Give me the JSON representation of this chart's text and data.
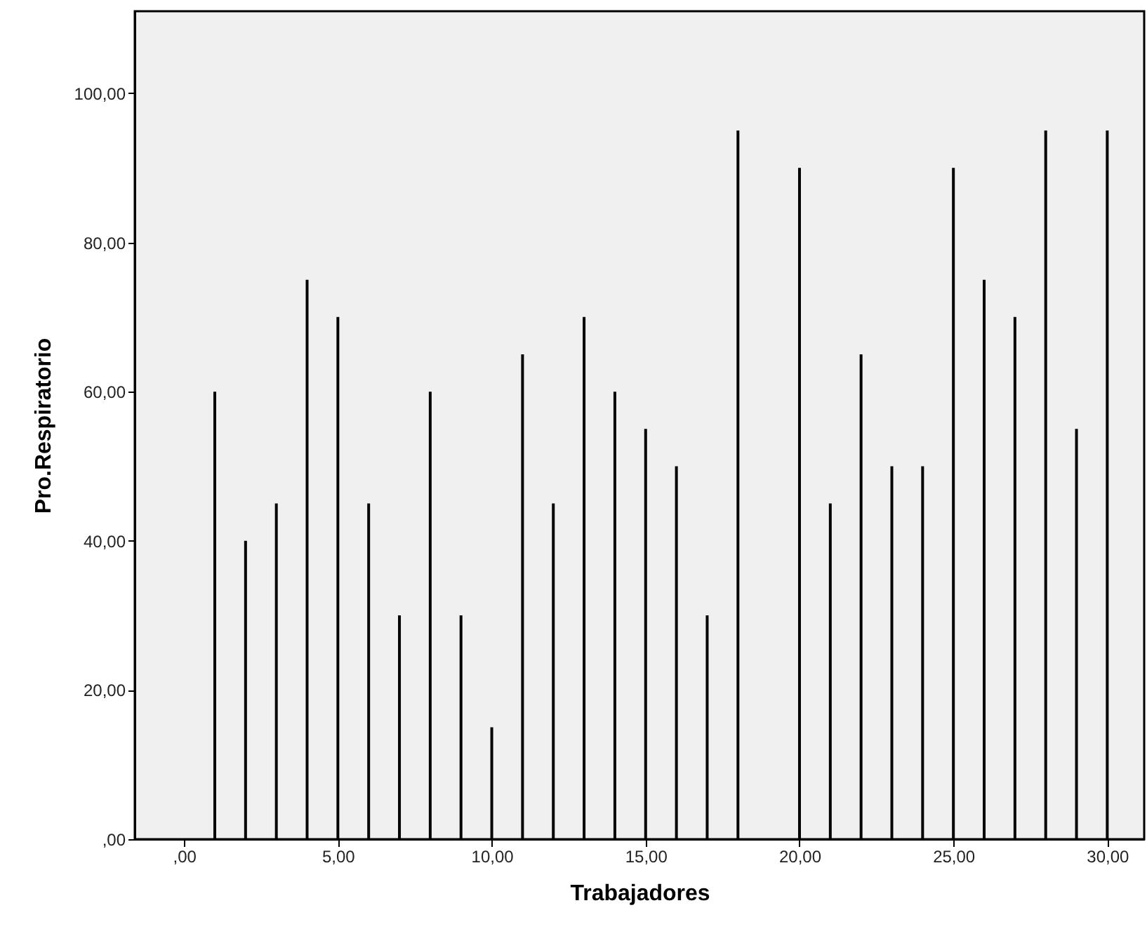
{
  "chart_data": {
    "type": "bar",
    "xlabel": "Trabajadores",
    "ylabel": "Pro.Respiratorio",
    "x": [
      1,
      2,
      3,
      4,
      5,
      6,
      7,
      8,
      9,
      10,
      11,
      12,
      13,
      14,
      15,
      16,
      17,
      18,
      20,
      21,
      22,
      23,
      24,
      25,
      26,
      27,
      28,
      29,
      30
    ],
    "values": [
      60,
      40,
      45,
      75,
      70,
      45,
      30,
      60,
      30,
      15,
      65,
      45,
      70,
      60,
      55,
      50,
      30,
      95,
      90,
      45,
      65,
      50,
      50,
      90,
      75,
      70,
      95,
      55,
      95
    ],
    "color": "#000000",
    "xlim": [
      -1.6,
      31.2
    ],
    "ylim": [
      0,
      111
    ],
    "xticks": [
      {
        "value": 0,
        "label": ",00"
      },
      {
        "value": 5,
        "label": "5,00"
      },
      {
        "value": 10,
        "label": "10,00"
      },
      {
        "value": 15,
        "label": "15,00"
      },
      {
        "value": 20,
        "label": "20,00"
      },
      {
        "value": 25,
        "label": "25,00"
      },
      {
        "value": 30,
        "label": "30,00"
      }
    ],
    "yticks": [
      {
        "value": 0,
        "label": ",00"
      },
      {
        "value": 20,
        "label": "20,00"
      },
      {
        "value": 40,
        "label": "40,00"
      },
      {
        "value": 60,
        "label": "60,00"
      },
      {
        "value": 80,
        "label": "80,00"
      },
      {
        "value": 100,
        "label": "100,00"
      }
    ],
    "grid": false
  }
}
